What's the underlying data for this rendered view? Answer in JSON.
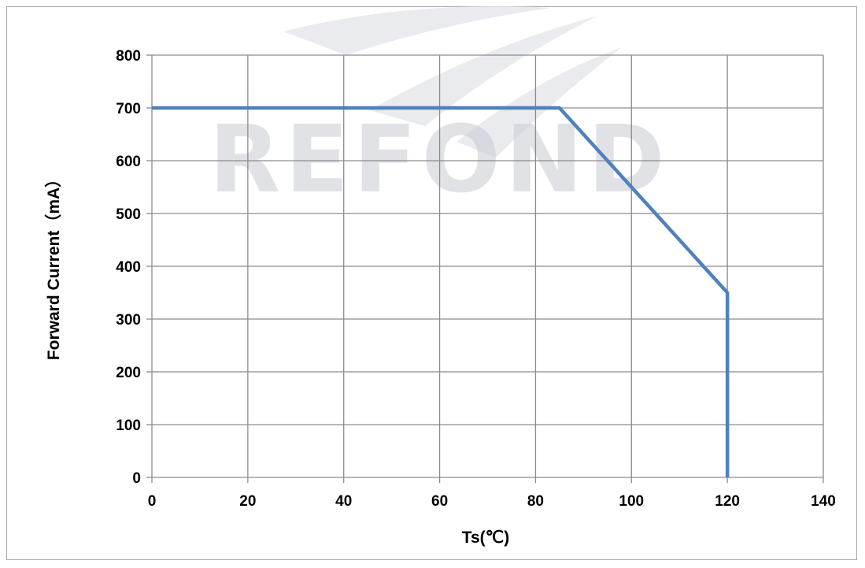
{
  "chart_data": {
    "type": "line",
    "title": "",
    "xlabel": "Ts(℃)",
    "ylabel": "Forward Current（mA）",
    "xlim": [
      0,
      140
    ],
    "ylim": [
      0,
      800
    ],
    "x_ticks": [
      0,
      20,
      40,
      60,
      80,
      100,
      120,
      140
    ],
    "y_ticks": [
      0,
      100,
      200,
      300,
      400,
      500,
      600,
      700,
      800
    ],
    "grid": true,
    "legend": "none",
    "series": [
      {
        "color": "#4f81bd",
        "points": [
          {
            "x": 0,
            "y": 700
          },
          {
            "x": 85,
            "y": 700
          },
          {
            "x": 120,
            "y": 350
          },
          {
            "x": 120,
            "y": 0
          }
        ]
      }
    ]
  },
  "watermark": {
    "text": "REFOND",
    "color": "#c7cbd3"
  },
  "colors": {
    "grid": "#8c8c8c",
    "frame": "#a6a6a6",
    "line": "#4f81bd"
  }
}
